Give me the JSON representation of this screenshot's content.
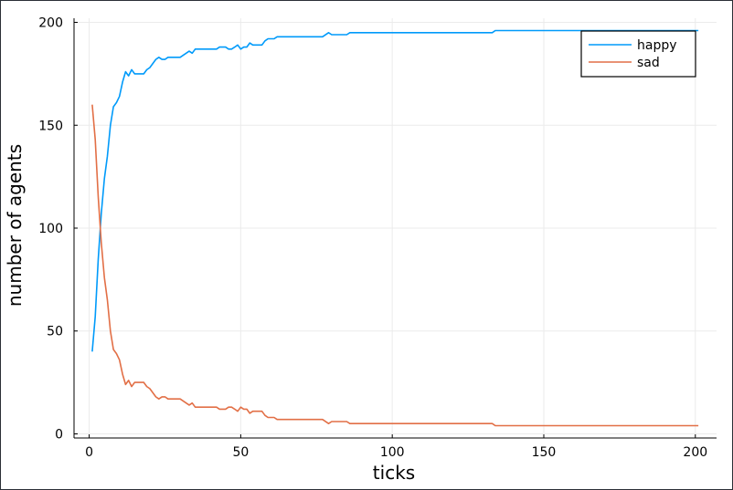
{
  "chart_data": {
    "type": "line",
    "title": "",
    "xlabel": "ticks",
    "ylabel": "number of agents",
    "xlim": [
      -5,
      207
    ],
    "ylim": [
      -2,
      202
    ],
    "xticks": [
      0,
      50,
      100,
      150,
      200
    ],
    "xtick_labels": [
      "0",
      "50",
      "100",
      "150",
      "200"
    ],
    "yticks": [
      0,
      50,
      100,
      150,
      200
    ],
    "ytick_labels": [
      "0",
      "50",
      "100",
      "150",
      "200"
    ],
    "grid": true,
    "legend_position": "top-right",
    "series": [
      {
        "name": "happy",
        "color": "#009AFA",
        "points": [
          [
            1,
            40
          ],
          [
            2,
            57
          ],
          [
            3,
            85
          ],
          [
            4,
            107
          ],
          [
            5,
            124
          ],
          [
            6,
            135
          ],
          [
            7,
            150
          ],
          [
            8,
            159
          ],
          [
            9,
            161
          ],
          [
            10,
            164
          ],
          [
            11,
            171
          ],
          [
            12,
            176
          ],
          [
            13,
            174
          ],
          [
            14,
            177
          ],
          [
            15,
            175
          ],
          [
            16,
            175
          ],
          [
            17,
            175
          ],
          [
            18,
            175
          ],
          [
            19,
            177
          ],
          [
            20,
            178
          ],
          [
            21,
            180
          ],
          [
            22,
            182
          ],
          [
            23,
            183
          ],
          [
            24,
            182
          ],
          [
            25,
            182
          ],
          [
            26,
            183
          ],
          [
            28,
            183
          ],
          [
            30,
            183
          ],
          [
            32,
            185
          ],
          [
            33,
            186
          ],
          [
            34,
            185
          ],
          [
            35,
            187
          ],
          [
            40,
            187
          ],
          [
            42,
            187
          ],
          [
            43,
            188
          ],
          [
            45,
            188
          ],
          [
            46,
            187
          ],
          [
            47,
            187
          ],
          [
            48,
            188
          ],
          [
            49,
            189
          ],
          [
            50,
            187
          ],
          [
            51,
            188
          ],
          [
            52,
            188
          ],
          [
            53,
            190
          ],
          [
            54,
            189
          ],
          [
            57,
            189
          ],
          [
            58,
            191
          ],
          [
            59,
            192
          ],
          [
            61,
            192
          ],
          [
            62,
            193
          ],
          [
            70,
            193
          ],
          [
            77,
            193
          ],
          [
            79,
            195
          ],
          [
            80,
            194
          ],
          [
            85,
            194
          ],
          [
            86,
            195
          ],
          [
            100,
            195
          ],
          [
            110,
            195
          ],
          [
            120,
            195
          ],
          [
            133,
            195
          ],
          [
            134,
            196
          ],
          [
            150,
            196
          ],
          [
            170,
            196
          ],
          [
            190,
            196
          ],
          [
            201,
            196
          ]
        ]
      },
      {
        "name": "sad",
        "color": "#E26F46",
        "points": [
          [
            1,
            160
          ],
          [
            2,
            143
          ],
          [
            3,
            115
          ],
          [
            4,
            93
          ],
          [
            5,
            76
          ],
          [
            6,
            65
          ],
          [
            7,
            50
          ],
          [
            8,
            41
          ],
          [
            9,
            39
          ],
          [
            10,
            36
          ],
          [
            11,
            29
          ],
          [
            12,
            24
          ],
          [
            13,
            26
          ],
          [
            14,
            23
          ],
          [
            15,
            25
          ],
          [
            16,
            25
          ],
          [
            17,
            25
          ],
          [
            18,
            25
          ],
          [
            19,
            23
          ],
          [
            20,
            22
          ],
          [
            21,
            20
          ],
          [
            22,
            18
          ],
          [
            23,
            17
          ],
          [
            24,
            18
          ],
          [
            25,
            18
          ],
          [
            26,
            17
          ],
          [
            28,
            17
          ],
          [
            30,
            17
          ],
          [
            32,
            15
          ],
          [
            33,
            14
          ],
          [
            34,
            15
          ],
          [
            35,
            13
          ],
          [
            40,
            13
          ],
          [
            42,
            13
          ],
          [
            43,
            12
          ],
          [
            45,
            12
          ],
          [
            46,
            13
          ],
          [
            47,
            13
          ],
          [
            48,
            12
          ],
          [
            49,
            11
          ],
          [
            50,
            13
          ],
          [
            51,
            12
          ],
          [
            52,
            12
          ],
          [
            53,
            10
          ],
          [
            54,
            11
          ],
          [
            57,
            11
          ],
          [
            58,
            9
          ],
          [
            59,
            8
          ],
          [
            61,
            8
          ],
          [
            62,
            7
          ],
          [
            70,
            7
          ],
          [
            77,
            7
          ],
          [
            79,
            5
          ],
          [
            80,
            6
          ],
          [
            85,
            6
          ],
          [
            86,
            5
          ],
          [
            100,
            5
          ],
          [
            110,
            5
          ],
          [
            120,
            5
          ],
          [
            133,
            5
          ],
          [
            134,
            4
          ],
          [
            150,
            4
          ],
          [
            170,
            4
          ],
          [
            190,
            4
          ],
          [
            201,
            4
          ]
        ]
      }
    ]
  }
}
